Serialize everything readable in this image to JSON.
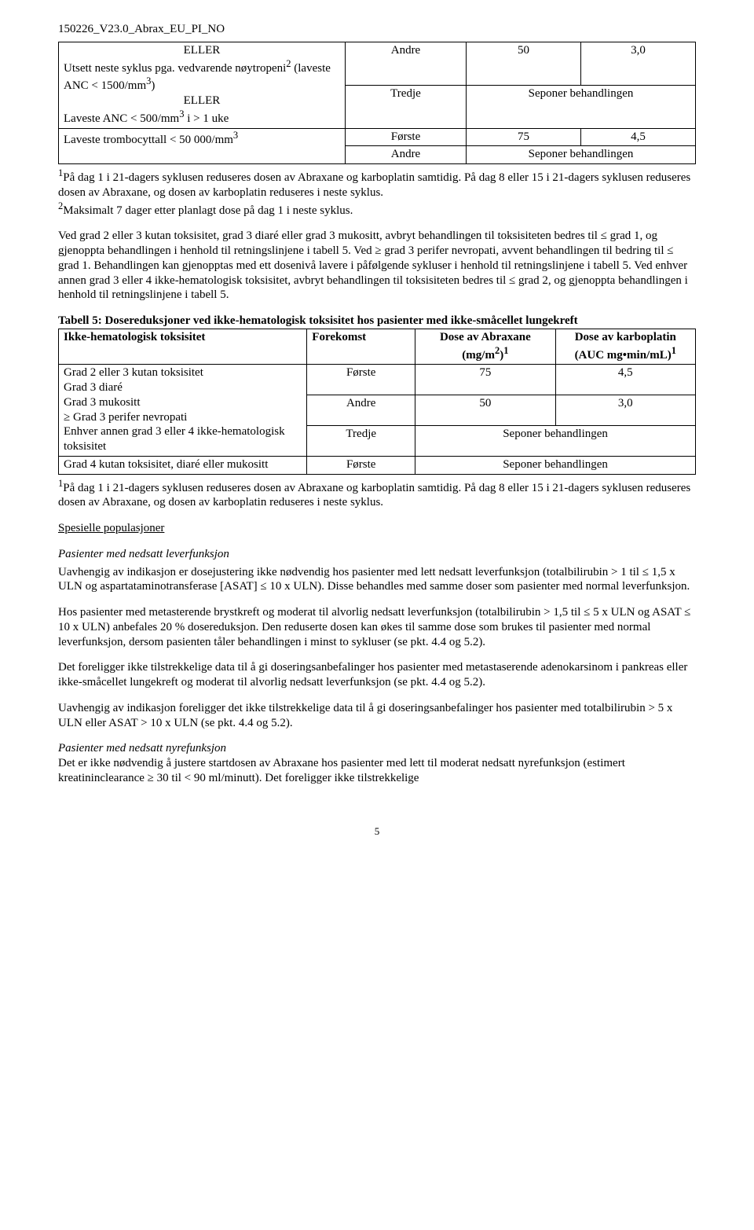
{
  "header": {
    "code": "150226_V23.0_Abrax_EU_PI_NO"
  },
  "table1": {
    "left_row1": "ELLER",
    "left_row1b": "Utsett neste syklus pga. vedvarende nøytropeni",
    "left_row1c": " (laveste ANC < 1500/mm",
    "left_row1d": ")",
    "left_row2": "ELLER",
    "left_row3a": "Laveste ANC < 500/mm",
    "left_row3b": " i > 1 uke",
    "r1c1": "Andre",
    "r1c2": "50",
    "r1c3": "3,0",
    "r2c1": "Tredje",
    "r2c23": "Seponer behandlingen",
    "left2": "Laveste trombocyttall < 50 000/mm",
    "r3c1": "Første",
    "r3c2": "75",
    "r3c3": "4,5",
    "r4c1": "Andre",
    "r4c23": "Seponer behandlingen"
  },
  "footnote1": {
    "text_a": "På dag 1 i 21-dagers syklusen reduseres dosen av Abraxane og karboplatin samtidig. På dag 8 eller 15 i 21-dagers syklusen reduseres dosen av Abraxane, og dosen av karboplatin reduseres i neste syklus. ",
    "text_b": "Maksimalt 7 dager etter planlagt dose på dag 1 i neste syklus."
  },
  "para1": "Ved grad 2 eller 3 kutan toksisitet, grad 3 diaré eller grad 3 mukositt, avbryt behandlingen til toksisiteten bedres til ≤ grad 1, og gjenoppta behandlingen i henhold til retningslinjene i tabell 5. Ved ≥ grad 3 perifer nevropati, avvent behandlingen til bedring til ≤ grad 1. Behandlingen kan gjenopptas med ett dosenivå lavere i påfølgende sykluser i henhold til retningslinjene i tabell 5. Ved enhver annen grad 3 eller 4 ikke-hematologisk toksisitet, avbryt behandlingen til toksisiteten bedres til ≤ grad 2, og gjenoppta behandlingen i henhold til retningslinjene i tabell 5.",
  "table2": {
    "title": "Tabell 5: Dosereduksjoner ved ikke-hematologisk toksisitet hos pasienter med ikke-småcellet lungekreft",
    "h1": "Ikke-hematologisk toksisitet",
    "h2": "Forekomst",
    "h3a": "Dose av Abraxane (mg/m",
    "h3b": ")",
    "h4a": "Dose av karboplatin (AUC mg•min/mL)",
    "left1_l1": "Grad 2 eller 3 kutan toksisitet",
    "left1_l2": "Grad 3 diaré",
    "left1_l3": "Grad 3 mukositt",
    "left1_l4": "≥ Grad 3 perifer nevropati",
    "left1_l5": "Enhver annen grad 3 eller 4 ikke-hematologisk toksisitet",
    "r1c1": "Første",
    "r1c2": "75",
    "r1c3": "4,5",
    "r2c1": "Andre",
    "r2c2": "50",
    "r2c3": "3,0",
    "r3c1": "Tredje",
    "r3c23": "Seponer behandlingen",
    "left2": "Grad 4 kutan toksisitet, diaré eller mukositt",
    "r4c1": "Første",
    "r4c23": "Seponer behandlingen"
  },
  "footnote2": "På dag 1 i 21-dagers syklusen reduseres dosen av Abraxane og karboplatin samtidig. På dag 8 eller 15 i 21-dagers syklusen reduseres dosen av Abraxane, og dosen av karboplatin reduseres i neste syklus.",
  "sections": {
    "spesielle": "Spesielle populasjoner",
    "lever_title": "Pasienter med nedsatt leverfunksjon",
    "lever_p1": "Uavhengig av indikasjon er dosejustering ikke nødvendig hos pasienter med lett nedsatt leverfunksjon (totalbilirubin > 1 til ≤ 1,5 x ULN og aspartataminotransferase [ASAT] ≤ 10 x ULN). Disse behandles med samme doser som pasienter med normal leverfunksjon.",
    "lever_p2": "Hos pasienter med metasterende brystkreft og moderat til alvorlig nedsatt leverfunksjon (totalbilirubin > 1,5 til ≤ 5 x ULN og ASAT ≤ 10 x ULN) anbefales 20 % dosereduksjon. Den reduserte dosen kan økes til samme dose som brukes til pasienter med normal leverfunksjon, dersom pasienten tåler behandlingen i minst to sykluser (se pkt. 4.4 og 5.2).",
    "lever_p3": "Det foreligger ikke tilstrekkelige data til å gi doseringsanbefalinger hos pasienter med metastaserende adenokarsinom i pankreas eller ikke-småcellet lungekreft og moderat til alvorlig nedsatt leverfunksjon (se pkt. 4.4 og 5.2).",
    "lever_p4": "Uavhengig av indikasjon foreligger det ikke tilstrekkelige data til å gi doseringsanbefalinger hos pasienter med totalbilirubin > 5 x ULN eller ASAT > 10 x ULN (se pkt. 4.4 og 5.2).",
    "nyre_title": "Pasienter med nedsatt nyrefunksjon",
    "nyre_p1": "Det er ikke nødvendig å justere startdosen av Abraxane hos pasienter med lett til moderat nedsatt nyrefunksjon (estimert kreatininclearance ≥ 30 til < 90 ml/minutt). Det foreligger ikke tilstrekkelige"
  },
  "pagenum": "5"
}
